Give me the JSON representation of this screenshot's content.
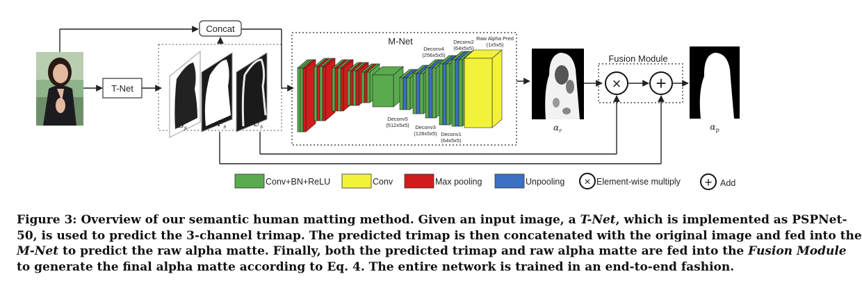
{
  "diagram": {
    "tnet_label": "T-Net",
    "concat_label": "Concat",
    "mnet_title": "M-Net",
    "fusion_title": "Fusion Module",
    "trimap_labels": {
      "b": "B",
      "f": "F",
      "u": "U",
      "sub": "s"
    },
    "alpha_labels": {
      "r": "α",
      "r_sub": "r",
      "p": "α",
      "p_sub": "p"
    },
    "layer_labels": {
      "deconv5": "Deconv5",
      "deconv5_size": "(512x5x5)",
      "deconv4": "Deconv4",
      "deconv4_size": "(256x5x5)",
      "deconv3": "Deconv3",
      "deconv3_size": "(128x5x5)",
      "deconv2": "Deconv2",
      "deconv2_size": "(64x5x5)",
      "deconv1": "Deconv1",
      "deconv1_size": "(64x5x5)",
      "raw_alpha": "Raw Alpha Pred",
      "raw_alpha_size": "(1x5x5)"
    },
    "multiply_symbol": "×",
    "add_symbol": "+"
  },
  "legend": {
    "items": [
      {
        "label": "Conv+BN+ReLU",
        "color": "#5aaa4e"
      },
      {
        "label": "Conv",
        "color": "#f2f23a"
      },
      {
        "label": "Max pooling",
        "color": "#d01c1c"
      },
      {
        "label": "Unpooling",
        "color": "#3a6fc4"
      }
    ],
    "multiply_label": "Element-wise multiply",
    "add_label": "Add"
  },
  "caption": {
    "line1a": "Figure 3: Overview of our semantic human matting method. Given an input image, a ",
    "line1b": "T-Net",
    "line1c": ", which is implemented as PSPNet-",
    "line2": "50, is used to predict the 3-channel trimap. The predicted trimap is then concatenated with the original image and fed into the",
    "line3a": "M-Net",
    "line3b": " to predict the raw alpha matte. Finally, both the predicted trimap and raw alpha matte are fed into the ",
    "line3c": "Fusion Module",
    "line4": "to generate the final alpha matte according to Eq. 4. The entire network is trained in an end-to-end fashion."
  }
}
